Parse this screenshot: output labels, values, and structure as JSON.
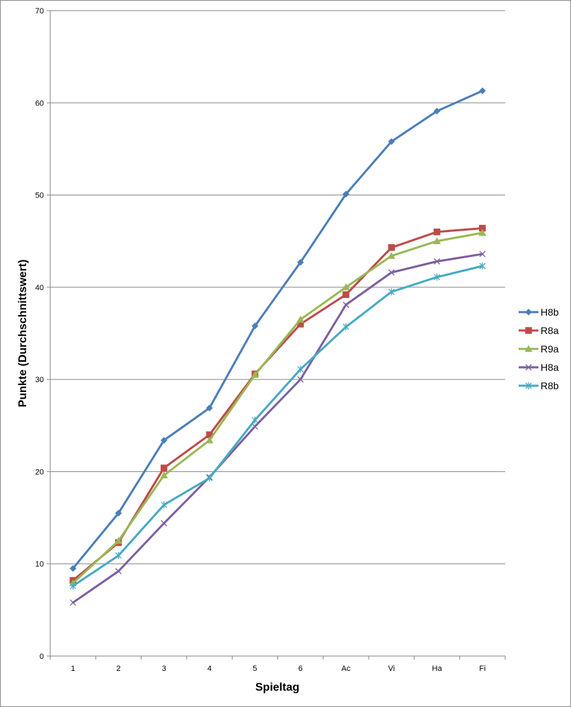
{
  "chart_data": {
    "type": "line",
    "xlabel": "Spieltag",
    "ylabel": "Punkte (Durchschnittswert)",
    "ylim": [
      0,
      70
    ],
    "yticks": [
      0,
      10,
      20,
      30,
      40,
      50,
      60,
      70
    ],
    "categories": [
      "1",
      "2",
      "3",
      "4",
      "5",
      "6",
      "Ac",
      "Vi",
      "Ha",
      "Fi"
    ],
    "grid": "horizontal",
    "legend_position": "right",
    "series": [
      {
        "name": "H8b",
        "color": "#4A7EBB",
        "marker": "diamond",
        "values": [
          9.5,
          15.5,
          23.4,
          26.9,
          35.8,
          42.7,
          50.1,
          55.8,
          59.1,
          61.3
        ]
      },
      {
        "name": "R8a",
        "color": "#BE4B48",
        "marker": "square",
        "values": [
          8.2,
          12.3,
          20.4,
          24.0,
          30.6,
          36.0,
          39.2,
          44.3,
          46.0,
          46.4
        ]
      },
      {
        "name": "R9a",
        "color": "#98B954",
        "marker": "triangle",
        "values": [
          7.9,
          12.5,
          19.6,
          23.4,
          30.5,
          36.5,
          40.0,
          43.4,
          45.0,
          45.9
        ]
      },
      {
        "name": "H8a",
        "color": "#7D5FA0",
        "marker": "x",
        "values": [
          5.8,
          9.2,
          14.4,
          19.4,
          24.9,
          30.0,
          38.1,
          41.6,
          42.8,
          43.6
        ]
      },
      {
        "name": "R8b",
        "color": "#46AAC5",
        "marker": "star",
        "values": [
          7.6,
          10.9,
          16.4,
          19.3,
          25.6,
          31.1,
          35.7,
          39.5,
          41.1,
          42.3
        ]
      }
    ]
  }
}
